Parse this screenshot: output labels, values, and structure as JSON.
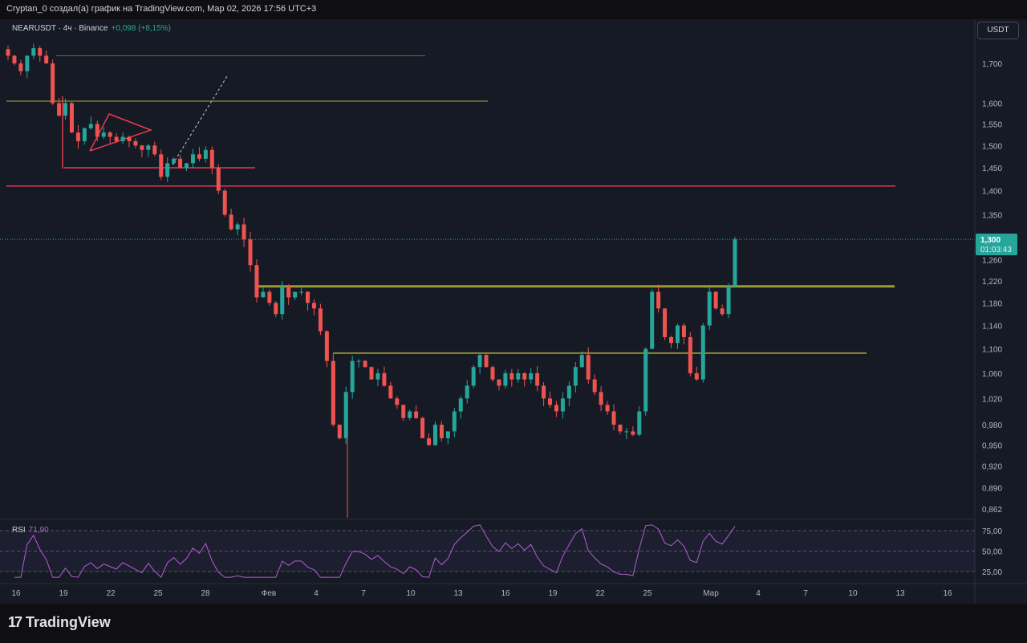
{
  "header": "Cryptan_0 создал(а) график на TradingView.com, Мар 02, 2026 17:56 UTC+3",
  "symbol": "NEARUSDT · 4ч · Binance",
  "change": "+0,098 (+8,15%)",
  "currency": "USDT",
  "logo": "TradingView",
  "chart_data": {
    "type": "candlestick",
    "symbol": "NEARUSDT",
    "timeframe": "4h",
    "exchange": "Binance",
    "scale": "log",
    "closes": [
      1.72,
      1.7,
      1.68,
      1.72,
      1.74,
      1.72,
      1.7,
      1.6,
      1.57,
      1.6,
      1.53,
      1.51,
      1.54,
      1.55,
      1.52,
      1.53,
      1.52,
      1.51,
      1.52,
      1.51,
      1.5,
      1.49,
      1.5,
      1.48,
      1.43,
      1.46,
      1.47,
      1.45,
      1.46,
      1.48,
      1.47,
      1.49,
      1.45,
      1.4,
      1.35,
      1.32,
      1.33,
      1.3,
      1.25,
      1.19,
      1.2,
      1.18,
      1.16,
      1.21,
      1.19,
      1.2,
      1.2,
      1.18,
      1.17,
      1.13,
      1.08,
      0.98,
      0.96,
      1.03,
      1.08,
      1.08,
      1.07,
      1.05,
      1.06,
      1.04,
      1.02,
      1.01,
      0.99,
      1.0,
      0.99,
      0.96,
      0.95,
      0.98,
      0.96,
      0.97,
      1.0,
      1.02,
      1.04,
      1.07,
      1.09,
      1.07,
      1.05,
      1.04,
      1.06,
      1.05,
      1.06,
      1.05,
      1.06,
      1.04,
      1.02,
      1.01,
      1.0,
      1.02,
      1.04,
      1.07,
      1.09,
      1.05,
      1.03,
      1.01,
      1.0,
      0.98,
      0.97,
      0.97,
      0.965,
      1.0,
      1.1,
      1.2,
      1.17,
      1.12,
      1.11,
      1.14,
      1.12,
      1.06,
      1.05,
      1.14,
      1.2,
      1.17,
      1.16,
      1.21,
      1.3
    ],
    "last_price": "1,300",
    "countdown": "01:03:43",
    "levels": [
      {
        "price": 1.72,
        "color": "#6b6b2e"
      },
      {
        "price": 1.605,
        "color": "#7a7a30"
      },
      {
        "price": 1.45,
        "color": "#e53950"
      },
      {
        "price": 1.41,
        "color": "#e53950"
      },
      {
        "price": 1.21,
        "color": "#9a9a30"
      },
      {
        "price": 1.093,
        "color": "#8a8a30"
      }
    ],
    "y_ticks": [
      "1,700",
      "1,600",
      "1,550",
      "1,500",
      "1,450",
      "1,400",
      "1,350",
      "1,260",
      "1,220",
      "1,180",
      "1,140",
      "1,100",
      "1,060",
      "1,020",
      "0,980",
      "0,950",
      "0,920",
      "0,890",
      "0,862"
    ],
    "x_ticks": [
      "16",
      "19",
      "22",
      "25",
      "28",
      "Фев",
      "4",
      "7",
      "10",
      "13",
      "16",
      "19",
      "22",
      "25",
      "Мар",
      "4",
      "7",
      "10",
      "13",
      "16"
    ],
    "rsi": {
      "label": "RSI",
      "value": "71,90",
      "ticks": [
        "75,00",
        "50,00",
        "25,00"
      ],
      "period": 14
    },
    "colors": {
      "up": "#26a69a",
      "down": "#ef5350",
      "bg": "#161a25"
    }
  }
}
